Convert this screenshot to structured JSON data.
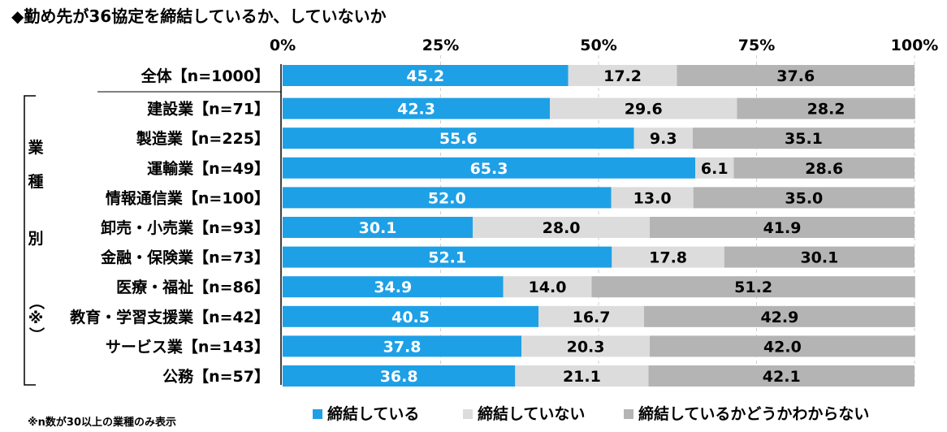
{
  "chart_data": {
    "type": "bar",
    "orientation": "horizontal",
    "stacked": true,
    "title": "◆勤め先が36協定を締結しているか、していないか",
    "xlim": [
      0,
      100
    ],
    "x_ticks": [
      "0%",
      "25%",
      "50%",
      "75%",
      "100%"
    ],
    "categories": [
      "全体【n=1000】",
      "建設業【n=71】",
      "製造業【n=225】",
      "運輸業【n=49】",
      "情報通信業【n=100】",
      "卸売・小売業【n=93】",
      "金融・保険業【n=73】",
      "医療・福祉【n=86】",
      "教育・学習支援業【n=42】",
      "サービス業【n=143】",
      "公務【n=57】"
    ],
    "series": [
      {
        "name": "締結している",
        "color": "#1ea0e6",
        "label_color": "#ffffff",
        "values": [
          45.2,
          42.3,
          55.6,
          65.3,
          52.0,
          30.1,
          52.1,
          34.9,
          40.5,
          37.8,
          36.8
        ],
        "labels": [
          "45.2",
          "42.3",
          "55.6",
          "65.3",
          "52.0",
          "30.1",
          "52.1",
          "34.9",
          "40.5",
          "37.8",
          "36.8"
        ]
      },
      {
        "name": "締結していない",
        "color": "#dcdcdc",
        "label_color": "#000000",
        "values": [
          17.2,
          29.6,
          9.3,
          6.1,
          13.0,
          28.0,
          17.8,
          14.0,
          16.7,
          20.3,
          21.1
        ],
        "labels": [
          "17.2",
          "29.6",
          "9.3",
          "6.1",
          "13.0",
          "28.0",
          "17.8",
          "14.0",
          "16.7",
          "20.3",
          "21.1"
        ]
      },
      {
        "name": "締結しているかどうかわからない",
        "color": "#b4b4b4",
        "label_color": "#000000",
        "values": [
          37.6,
          28.2,
          35.1,
          28.6,
          35.0,
          41.9,
          30.1,
          51.2,
          42.9,
          42.0,
          42.1
        ],
        "labels": [
          "37.6",
          "28.2",
          "35.1",
          "28.6",
          "35.0",
          "41.9",
          "30.1",
          "51.2",
          "42.9",
          "42.0",
          "42.1"
        ]
      }
    ],
    "group_label": [
      "業",
      "種",
      "別",
      "（※）"
    ],
    "footnote": "※n数が30以上の業種のみ表示",
    "legend_position": "bottom"
  }
}
